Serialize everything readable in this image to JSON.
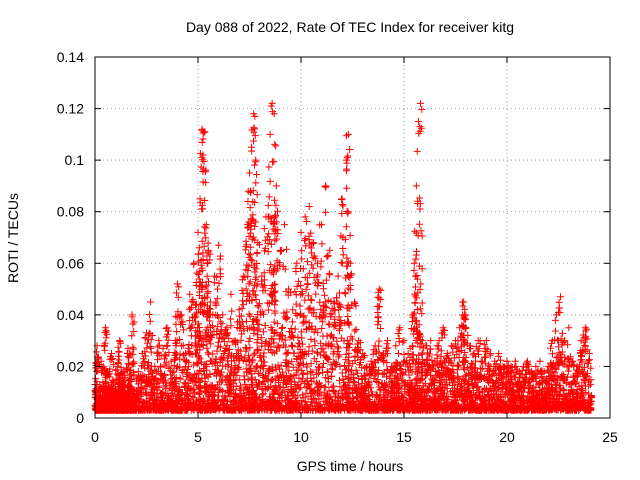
{
  "chart_data": {
    "type": "scatter",
    "title": "Day 088 of 2022, Rate Of TEC Index for receiver kitg",
    "xlabel": "GPS time / hours",
    "ylabel": "ROTI / TECUs",
    "xlim": [
      0,
      25
    ],
    "ylim": [
      0,
      0.14
    ],
    "x_ticks": [
      0,
      5,
      10,
      15,
      20,
      25
    ],
    "y_ticks": [
      0,
      0.02,
      0.04,
      0.06,
      0.08,
      0.1,
      0.12,
      0.14
    ],
    "x_tick_labels": [
      "0",
      "5",
      "10",
      "15",
      "20",
      "25"
    ],
    "y_tick_labels": [
      "0",
      "0.02",
      "0.04",
      "0.06",
      "0.08",
      "0.1",
      "0.12",
      "0.14"
    ],
    "grid": true,
    "marker": "+",
    "colors": {
      "series": "#ff0000",
      "grid": "#a0a0a0",
      "axis": "#000000"
    },
    "series": [
      {
        "name": "ROTI",
        "points": [
          [
            0.0,
            0.013
          ],
          [
            0.1,
            0.028
          ],
          [
            0.2,
            0.008
          ],
          [
            0.3,
            0.022
          ],
          [
            0.4,
            0.012
          ],
          [
            0.5,
            0.035
          ],
          [
            0.6,
            0.018
          ],
          [
            0.7,
            0.009
          ],
          [
            0.8,
            0.025
          ],
          [
            0.9,
            0.014
          ],
          [
            1.0,
            0.01
          ],
          [
            1.1,
            0.02
          ],
          [
            1.2,
            0.03
          ],
          [
            1.3,
            0.012
          ],
          [
            1.4,
            0.018
          ],
          [
            1.5,
            0.008
          ],
          [
            1.6,
            0.027
          ],
          [
            1.7,
            0.015
          ],
          [
            1.8,
            0.04
          ],
          [
            1.9,
            0.011
          ],
          [
            2.1,
            0.018
          ],
          [
            2.3,
            0.025
          ],
          [
            2.5,
            0.033
          ],
          [
            2.7,
            0.045
          ],
          [
            2.9,
            0.02
          ],
          [
            3.1,
            0.03
          ],
          [
            3.3,
            0.027
          ],
          [
            3.5,
            0.035
          ],
          [
            3.7,
            0.022
          ],
          [
            3.9,
            0.03
          ],
          [
            4.0,
            0.052
          ],
          [
            4.2,
            0.04
          ],
          [
            4.4,
            0.025
          ],
          [
            4.6,
            0.048
          ],
          [
            4.8,
            0.06
          ],
          [
            5.0,
            0.072
          ],
          [
            5.1,
            0.085
          ],
          [
            5.2,
            0.112
          ],
          [
            5.3,
            0.111
          ],
          [
            5.4,
            0.075
          ],
          [
            5.5,
            0.065
          ],
          [
            5.6,
            0.045
          ],
          [
            5.8,
            0.055
          ],
          [
            6.0,
            0.067
          ],
          [
            6.2,
            0.04
          ],
          [
            6.4,
            0.035
          ],
          [
            6.6,
            0.048
          ],
          [
            6.8,
            0.03
          ],
          [
            7.0,
            0.042
          ],
          [
            7.2,
            0.055
          ],
          [
            7.4,
            0.075
          ],
          [
            7.5,
            0.095
          ],
          [
            7.6,
            0.105
          ],
          [
            7.7,
            0.118
          ],
          [
            7.8,
            0.1
          ],
          [
            7.9,
            0.068
          ],
          [
            8.1,
            0.055
          ],
          [
            8.3,
            0.078
          ],
          [
            8.5,
            0.11
          ],
          [
            8.6,
            0.122
          ],
          [
            8.7,
            0.118
          ],
          [
            8.8,
            0.09
          ],
          [
            9.0,
            0.065
          ],
          [
            9.2,
            0.075
          ],
          [
            9.4,
            0.05
          ],
          [
            9.6,
            0.042
          ],
          [
            9.8,
            0.06
          ],
          [
            10.0,
            0.072
          ],
          [
            10.2,
            0.078
          ],
          [
            10.4,
            0.082
          ],
          [
            10.6,
            0.068
          ],
          [
            10.8,
            0.06
          ],
          [
            11.0,
            0.075
          ],
          [
            11.2,
            0.09
          ],
          [
            11.4,
            0.065
          ],
          [
            11.6,
            0.045
          ],
          [
            11.8,
            0.055
          ],
          [
            12.0,
            0.085
          ],
          [
            12.2,
            0.1
          ],
          [
            12.3,
            0.11
          ],
          [
            12.4,
            0.06
          ],
          [
            12.6,
            0.045
          ],
          [
            12.8,
            0.03
          ],
          [
            13.0,
            0.025
          ],
          [
            13.2,
            0.02
          ],
          [
            13.4,
            0.022
          ],
          [
            13.6,
            0.028
          ],
          [
            13.8,
            0.05
          ],
          [
            14.0,
            0.025
          ],
          [
            14.2,
            0.03
          ],
          [
            14.4,
            0.02
          ],
          [
            14.6,
            0.028
          ],
          [
            14.8,
            0.035
          ],
          [
            15.0,
            0.03
          ],
          [
            15.2,
            0.025
          ],
          [
            15.4,
            0.04
          ],
          [
            15.5,
            0.06
          ],
          [
            15.6,
            0.09
          ],
          [
            15.7,
            0.115
          ],
          [
            15.8,
            0.122
          ],
          [
            15.9,
            0.03
          ],
          [
            16.1,
            0.028
          ],
          [
            16.3,
            0.03
          ],
          [
            16.5,
            0.022
          ],
          [
            16.7,
            0.03
          ],
          [
            16.9,
            0.035
          ],
          [
            17.1,
            0.025
          ],
          [
            17.3,
            0.028
          ],
          [
            17.5,
            0.03
          ],
          [
            17.7,
            0.035
          ],
          [
            17.9,
            0.045
          ],
          [
            18.0,
            0.04
          ],
          [
            18.2,
            0.028
          ],
          [
            18.4,
            0.025
          ],
          [
            18.6,
            0.03
          ],
          [
            18.8,
            0.022
          ],
          [
            19.0,
            0.03
          ],
          [
            19.2,
            0.025
          ],
          [
            19.4,
            0.022
          ],
          [
            19.6,
            0.025
          ],
          [
            19.8,
            0.02
          ],
          [
            20.0,
            0.022
          ],
          [
            20.2,
            0.02
          ],
          [
            20.4,
            0.022
          ],
          [
            20.6,
            0.018
          ],
          [
            20.8,
            0.02
          ],
          [
            21.0,
            0.022
          ],
          [
            21.2,
            0.018
          ],
          [
            21.4,
            0.02
          ],
          [
            21.6,
            0.022
          ],
          [
            21.8,
            0.018
          ],
          [
            22.0,
            0.02
          ],
          [
            22.2,
            0.03
          ],
          [
            22.4,
            0.04
          ],
          [
            22.6,
            0.047
          ],
          [
            22.8,
            0.03
          ],
          [
            23.0,
            0.035
          ],
          [
            23.2,
            0.022
          ],
          [
            23.4,
            0.02
          ],
          [
            23.6,
            0.03
          ],
          [
            23.8,
            0.035
          ],
          [
            24.0,
            0.025
          ]
        ]
      }
    ]
  }
}
